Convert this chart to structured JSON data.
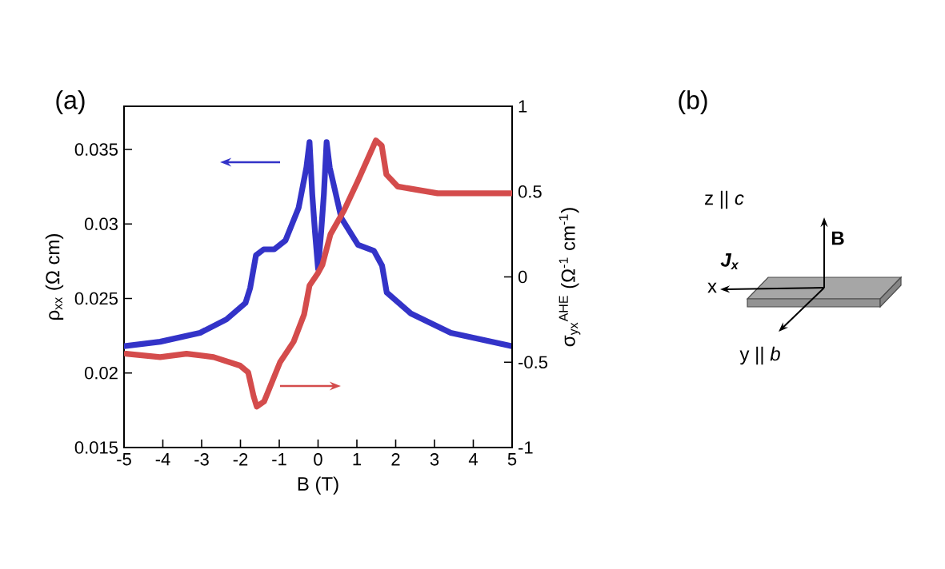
{
  "chart_data": {
    "type": "line",
    "xlabel": "B (T)",
    "ylabel": "ρ$_{xx}$ (Ω cm)",
    "y2label": "σ$_{yx}$$^{AHE}$ (Ω$^{-1}$ cm$^{-1}$)",
    "xlim": [
      -5,
      5
    ],
    "xticks": [
      -5,
      -4,
      -3,
      -2,
      -1,
      0,
      1,
      2,
      3,
      4,
      5
    ],
    "ylim": [
      0.015,
      0.0379
    ],
    "yticks": [
      0.015,
      0.02,
      0.025,
      0.03,
      0.035
    ],
    "y2lim": [
      -1,
      1
    ],
    "y2ticks": [
      -1,
      -0.5,
      0,
      0.5,
      1
    ],
    "series": [
      {
        "color": "#3333c8",
        "x": [
          -5,
          -4.07,
          -3.04,
          -2.36,
          -1.87,
          -1.75,
          -1.6,
          -1.4,
          -1.13,
          -0.84,
          -0.5,
          -0.3,
          -0.22,
          -0.15,
          -0.08,
          0,
          0.08,
          0.15,
          0.22,
          0.3,
          0.6,
          1.03,
          1.44,
          1.65,
          1.77,
          2.39,
          3.42,
          5
        ],
        "values": [
          0.0218,
          0.0221,
          0.0227,
          0.0236,
          0.0247,
          0.0257,
          0.0279,
          0.0283,
          0.0283,
          0.0289,
          0.0311,
          0.0338,
          0.0355,
          0.032,
          0.0295,
          0.027,
          0.0295,
          0.032,
          0.0355,
          0.0338,
          0.0304,
          0.0286,
          0.0282,
          0.0272,
          0.0254,
          0.024,
          0.0227,
          0.0218
        ]
      },
      {
        "color": "#d44c4c",
        "axis": "y2",
        "x": [
          -4.95,
          -4.07,
          -3.39,
          -2.69,
          -2.01,
          -1.8,
          -1.66,
          -1.58,
          -1.39,
          -0.98,
          -0.63,
          -0.36,
          -0.22,
          -0.01,
          0.11,
          0.32,
          0.67,
          1.02,
          1.49,
          1.64,
          1.76,
          2.05,
          3.08,
          5
        ],
        "values": [
          -0.45,
          -0.47,
          -0.45,
          -0.47,
          -0.52,
          -0.56,
          -0.7,
          -0.76,
          -0.73,
          -0.5,
          -0.38,
          -0.22,
          -0.05,
          0.02,
          0.07,
          0.25,
          0.39,
          0.56,
          0.8,
          0.77,
          0.6,
          0.53,
          0.49,
          0.49
        ]
      }
    ],
    "annotations": [
      "(a)",
      "(b)",
      "z || *c*",
      "B",
      "J$_{x}$",
      "x",
      "y || *b*"
    ],
    "grid": false,
    "marker": "none"
  }
}
